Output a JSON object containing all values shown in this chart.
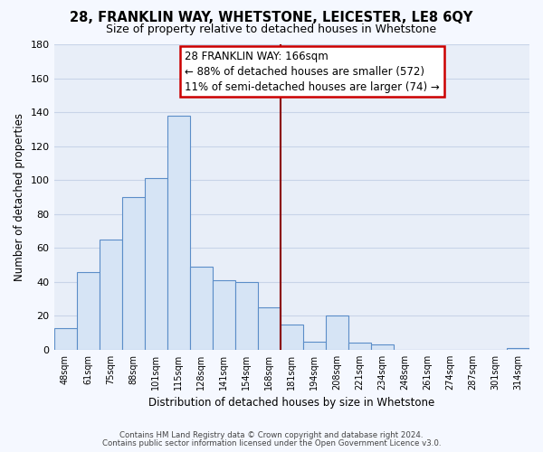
{
  "title": "28, FRANKLIN WAY, WHETSTONE, LEICESTER, LE8 6QY",
  "subtitle": "Size of property relative to detached houses in Whetstone",
  "xlabel": "Distribution of detached houses by size in Whetstone",
  "ylabel": "Number of detached properties",
  "bar_labels": [
    "48sqm",
    "61sqm",
    "75sqm",
    "88sqm",
    "101sqm",
    "115sqm",
    "128sqm",
    "141sqm",
    "154sqm",
    "168sqm",
    "181sqm",
    "194sqm",
    "208sqm",
    "221sqm",
    "234sqm",
    "248sqm",
    "261sqm",
    "274sqm",
    "287sqm",
    "301sqm",
    "314sqm"
  ],
  "bar_heights": [
    13,
    46,
    65,
    90,
    101,
    138,
    49,
    41,
    40,
    25,
    15,
    5,
    20,
    4,
    3,
    0,
    0,
    0,
    0,
    0,
    1
  ],
  "bar_color": "#d6e4f5",
  "bar_edge_color": "#5b8dc8",
  "vline_x": 9.5,
  "vline_color": "#8b0000",
  "annotation_title": "28 FRANKLIN WAY: 166sqm",
  "annotation_line1": "← 88% of detached houses are smaller (572)",
  "annotation_line2": "11% of semi-detached houses are larger (74) →",
  "annotation_box_color": "#ffffff",
  "annotation_box_edge": "#cc0000",
  "ylim": [
    0,
    180
  ],
  "footer1": "Contains HM Land Registry data © Crown copyright and database right 2024.",
  "footer2": "Contains public sector information licensed under the Open Government Licence v3.0.",
  "plot_bg_color": "#e8eef8",
  "fig_bg_color": "#f5f8ff",
  "grid_color": "#c8d4e8",
  "title_fontsize": 10.5,
  "subtitle_fontsize": 9,
  "tick_fontsize": 7,
  "ylabel_fontsize": 8.5,
  "xlabel_fontsize": 8.5,
  "annotation_fontsize": 8.5
}
